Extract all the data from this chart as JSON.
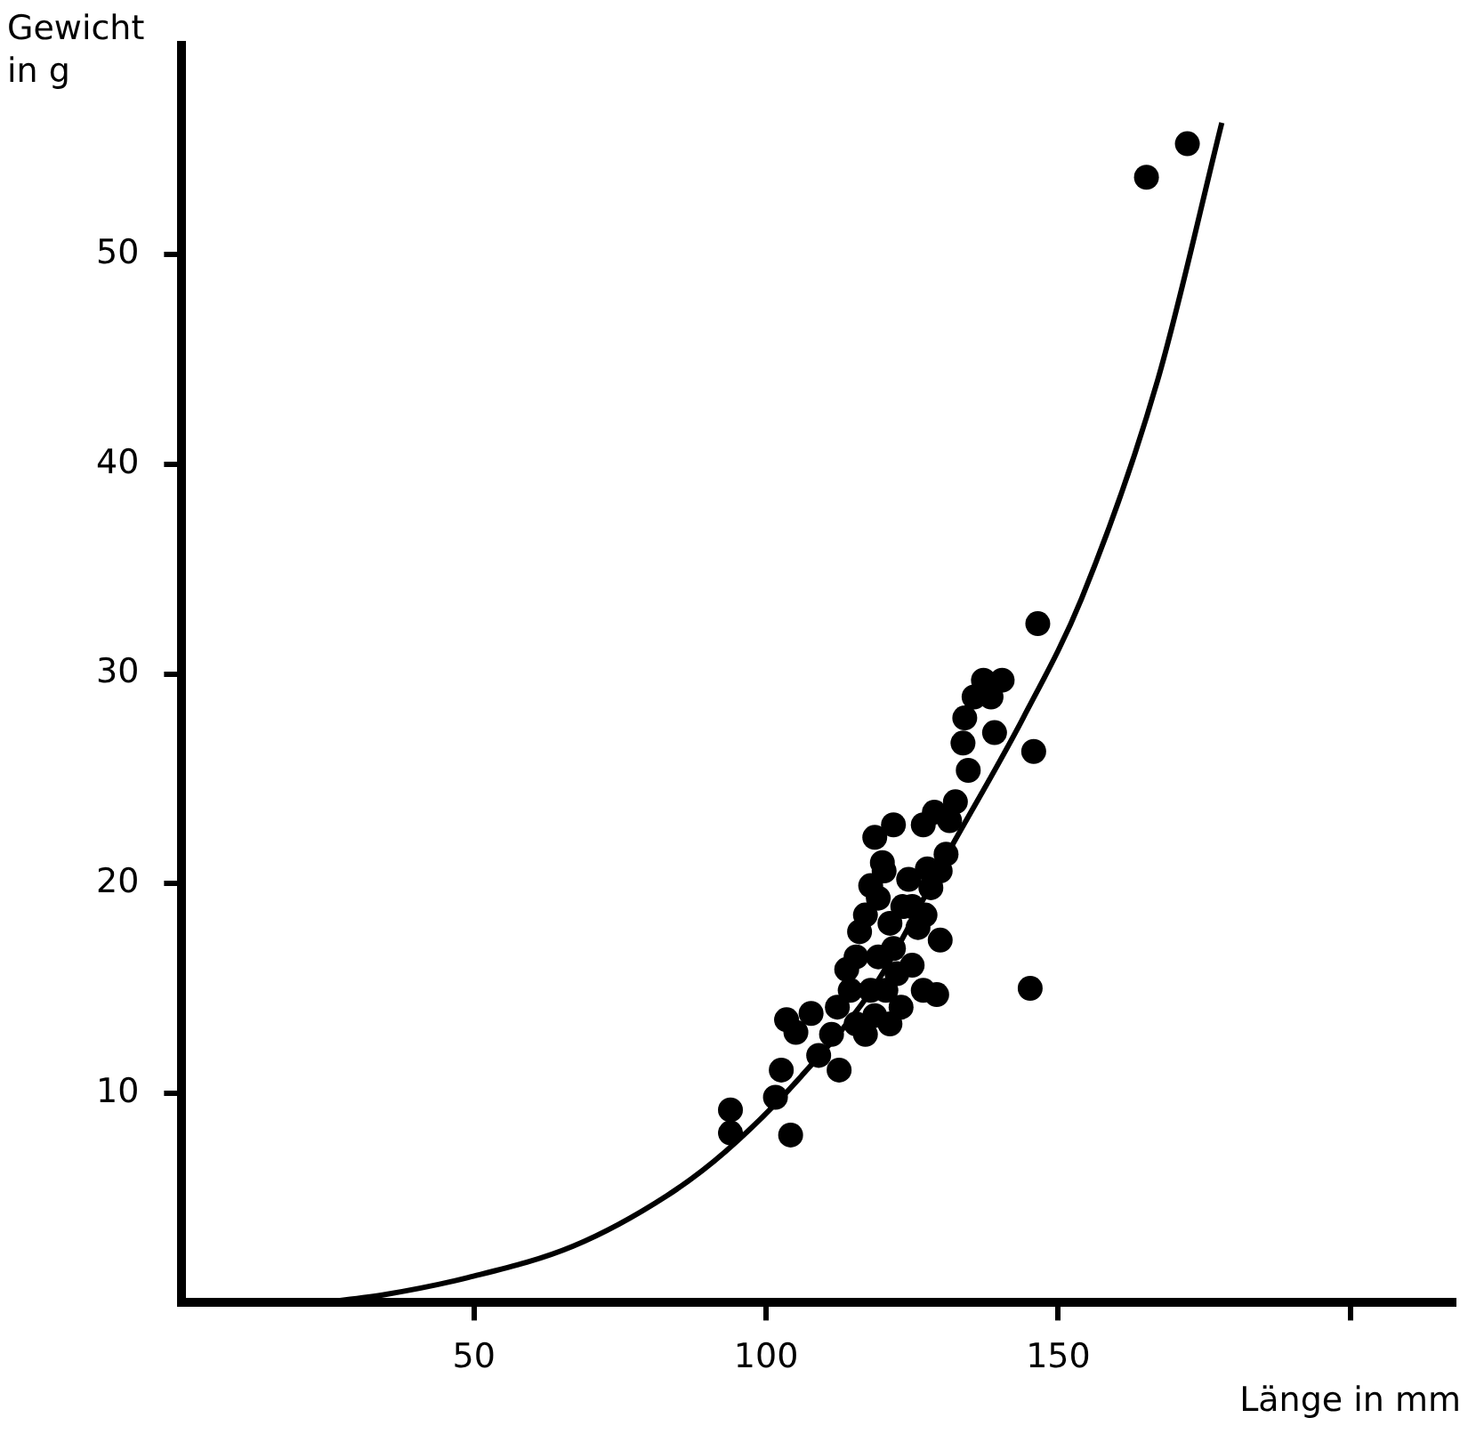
{
  "chart_data": {
    "type": "scatter",
    "xlabel": "Länge in mm",
    "ylabel": "Gewicht in g",
    "xlim": [
      0,
      218
    ],
    "ylim": [
      0,
      60
    ],
    "xticks": [
      50,
      100,
      150,
      {
        "value": 200,
        "label": null
      }
    ],
    "yticks": [
      10,
      20,
      30,
      40,
      50
    ],
    "grid": false,
    "legend": false,
    "marker": "circle",
    "series": [
      {
        "color": "#000000",
        "x": [
          93.9,
          93.9,
          101.6,
          102.6,
          103.5,
          104.2,
          105.1,
          107.7,
          109.0,
          111.2,
          112.5,
          112.2,
          114.4,
          113.8,
          115.4,
          116.0,
          117.0,
          117.9,
          119.2,
          120.2,
          121.2,
          121.8,
          122.4,
          120.5,
          118.6,
          117.0,
          115.4,
          123.4,
          124.4,
          119.2,
          121.2,
          117.9,
          123.1,
          125.0,
          126.0,
          127.2,
          128.2,
          129.8,
          126.9,
          129.8,
          130.8,
          127.6,
          119.9,
          121.8,
          118.6,
          125.0,
          126.9,
          128.8,
          131.4,
          132.4,
          134.6,
          133.7,
          134.0,
          135.6,
          137.2,
          140.4,
          138.5,
          139.1,
          146.5,
          145.8,
          129.2,
          145.2,
          165.1,
          172.1
        ],
        "values": [
          9.2,
          8.1,
          9.8,
          11.1,
          13.5,
          8.0,
          12.9,
          13.8,
          11.8,
          12.8,
          11.1,
          14.1,
          14.9,
          15.9,
          16.5,
          17.7,
          18.5,
          19.9,
          19.3,
          20.6,
          18.1,
          16.9,
          15.7,
          14.9,
          13.7,
          12.8,
          13.3,
          18.9,
          20.2,
          16.5,
          13.3,
          14.9,
          14.1,
          16.1,
          17.9,
          18.5,
          19.8,
          17.3,
          14.9,
          20.6,
          21.4,
          20.7,
          21.0,
          22.8,
          22.2,
          18.9,
          22.8,
          23.4,
          23.0,
          23.9,
          25.4,
          26.7,
          27.9,
          28.9,
          29.7,
          29.7,
          28.9,
          27.2,
          32.4,
          26.3,
          14.7,
          15.0,
          53.7,
          55.3
        ]
      },
      {
        "type": "line",
        "color": "#000000",
        "marker": "none",
        "x": [
          24,
          35,
          49,
          67,
          83,
          93,
          106,
          119,
          131,
          144,
          154,
          167,
          178
        ],
        "values": [
          0,
          0.4,
          1.2,
          2.7,
          5.1,
          7.2,
          10.8,
          15.3,
          21.4,
          27.9,
          33.6,
          44,
          56.3
        ]
      }
    ]
  }
}
